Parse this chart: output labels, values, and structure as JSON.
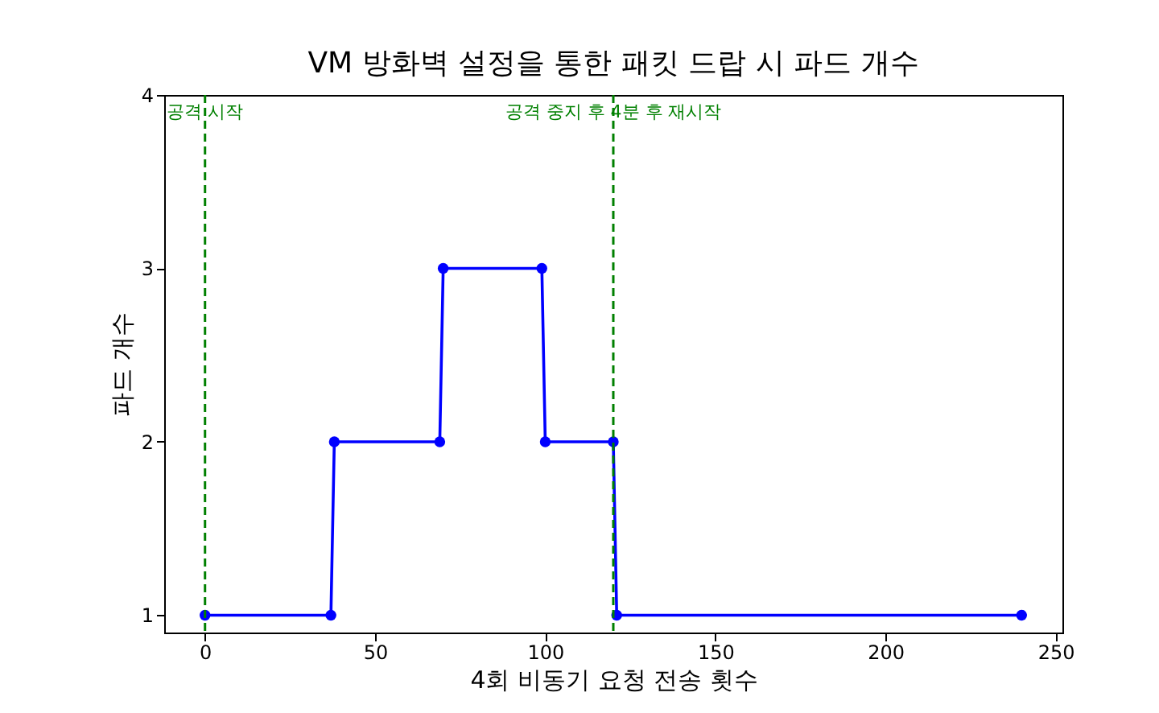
{
  "chart_data": {
    "type": "line",
    "title": "VM 방화벽 설정을 통한 패킷 드랍 시 파드 개수",
    "xlabel": "4회 비동기 요청 전송 횟수",
    "ylabel": "파드 개수",
    "x": [
      0,
      37,
      38,
      69,
      70,
      99,
      100,
      120,
      121,
      240
    ],
    "series": [
      {
        "color": "#0000ff",
        "values": [
          1,
          1,
          2,
          2,
          3,
          3,
          2,
          2,
          1,
          1
        ]
      }
    ],
    "xlim": [
      -12,
      252
    ],
    "xticks": [
      0,
      50,
      100,
      150,
      200,
      250
    ],
    "ylim": [
      0.9,
      4
    ],
    "yticks": [
      1,
      2,
      3,
      4
    ],
    "ref_lines": [
      {
        "axis": "x",
        "value": 0,
        "label": "공격 시작",
        "color": "#008000",
        "line_style": "dashed"
      },
      {
        "axis": "x",
        "value": 120,
        "label": "공격 중지 후 4분 후 재시작",
        "color": "#008000",
        "line_style": "dashed"
      }
    ],
    "marker": "circle",
    "line_style": "solid",
    "grid": false
  }
}
